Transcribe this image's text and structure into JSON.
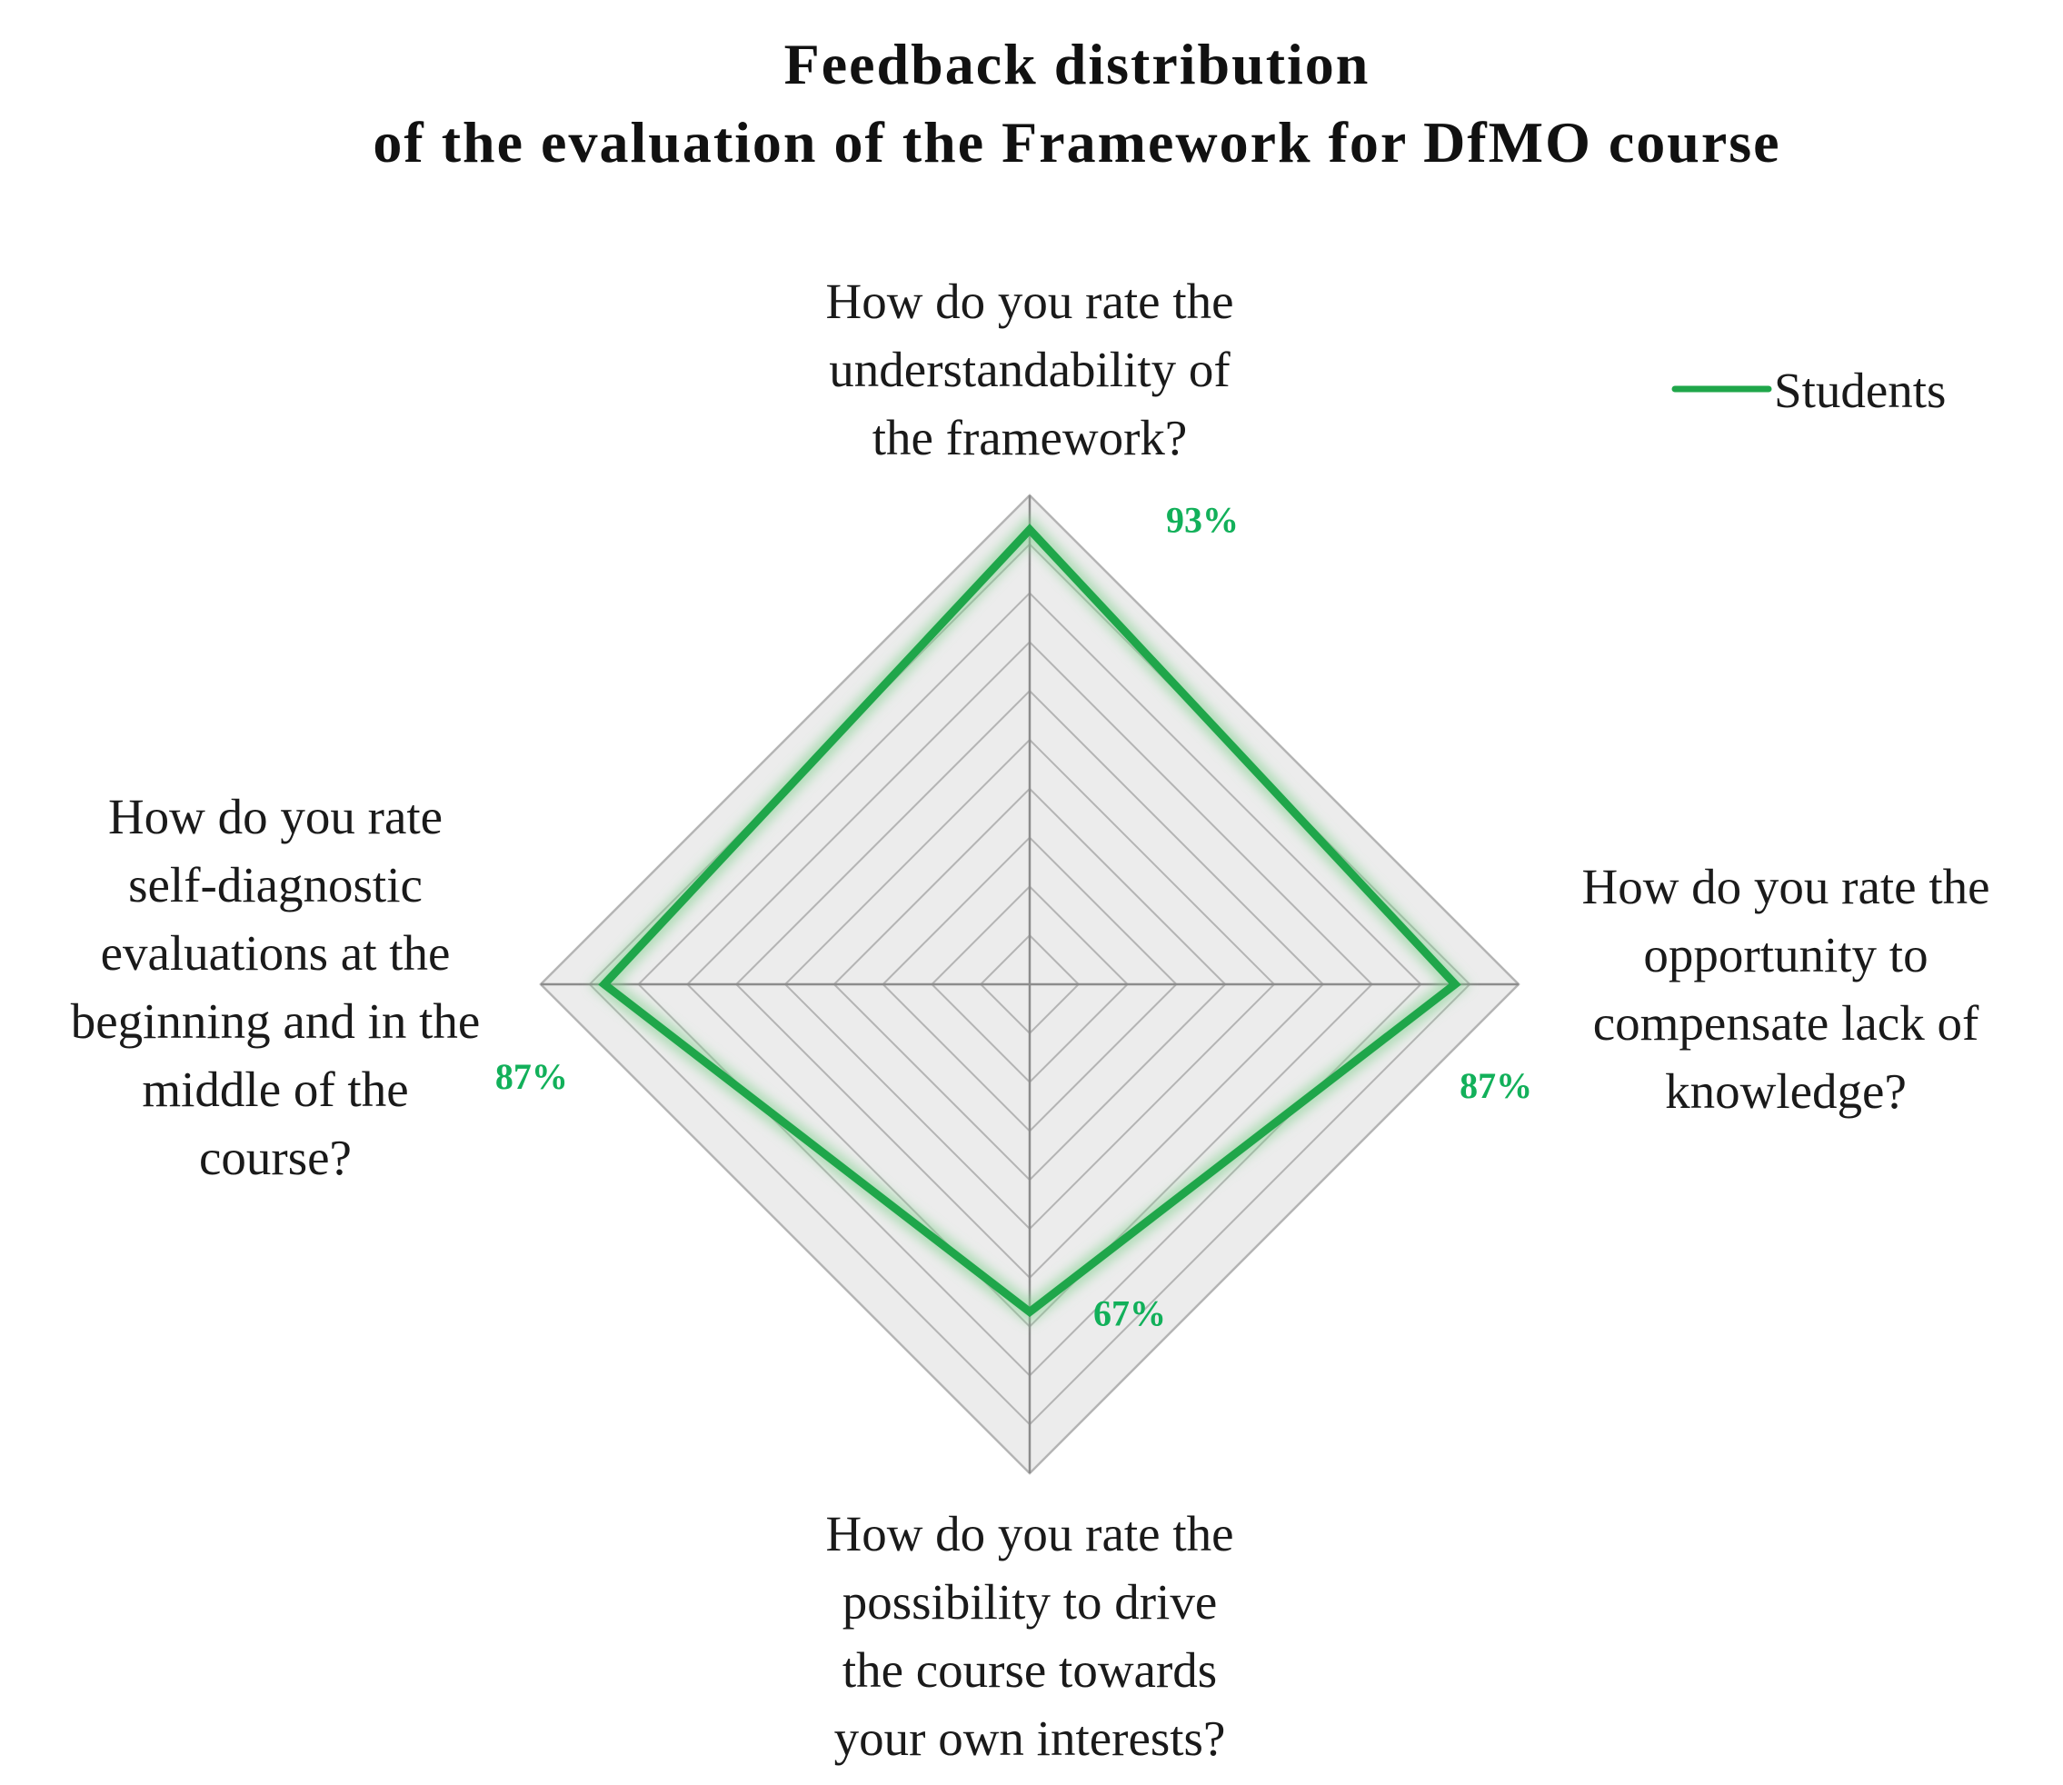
{
  "chart_data": {
    "type": "radar",
    "title_lines": [
      "Feedback distribution",
      "of the evaluation of the Framework for DfMO course"
    ],
    "categories": [
      [
        "How do you rate the",
        "understandability of",
        "the framework?"
      ],
      [
        "How do you rate the",
        "opportunity to",
        "compensate lack of",
        "knowledge?"
      ],
      [
        "How do you rate the",
        "possibility to drive",
        "the course towards",
        "your own interests?"
      ],
      [
        "How do you rate",
        "self-diagnostic",
        "evaluations at the",
        "beginning and in the",
        "middle of the",
        "course?"
      ]
    ],
    "series": [
      {
        "name": "Students",
        "values": [
          93,
          87,
          67,
          87
        ],
        "value_labels": [
          "93%",
          "87%",
          "67%",
          "87%"
        ]
      }
    ],
    "rlim": [
      0,
      100
    ],
    "ring_count": 10,
    "grid": true,
    "legend_position": "top-right",
    "colors": {
      "series": "#1fa64a",
      "label": "#12b05a",
      "grid": "#b4b4b4",
      "axis": "#8c8c8c",
      "area": "#ececec"
    }
  }
}
